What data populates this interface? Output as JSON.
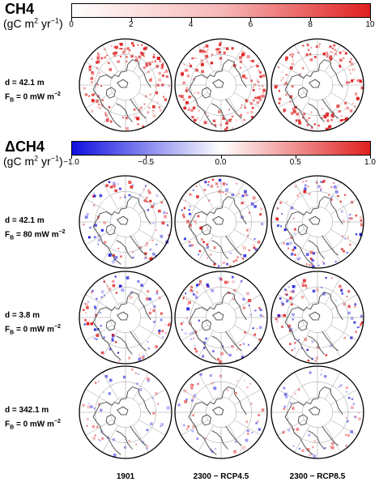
{
  "top": {
    "title": "CH4",
    "units": {
      "prefix": "(gC m",
      "sup1": "2",
      "mid": " yr",
      "sup2": "−1",
      "suffix": ")"
    },
    "colorbar": {
      "ticks": [
        "0",
        "2",
        "4",
        "6",
        "8",
        "10"
      ],
      "range": [
        0,
        10
      ],
      "colors": [
        "#ffffff",
        "#f7b8b8",
        "#e02020"
      ]
    }
  },
  "bottom": {
    "title": "ΔCH4",
    "units": {
      "prefix": "(gC m",
      "sup1": "2",
      "mid": " yr",
      "sup2": "−1",
      "suffix": ")"
    },
    "colorbar": {
      "ticks": [
        "−1.0",
        "−0.5",
        "0.0",
        "0.5",
        "1.0"
      ],
      "range": [
        -1,
        1
      ],
      "colors": [
        "#1010e0",
        "#ffffff",
        "#e02020"
      ]
    }
  },
  "rows": [
    {
      "d": "d = 42.1 m",
      "fb_value": " = 0 mW m",
      "fb_exp": "−2"
    },
    {
      "d": "d = 42.1 m",
      "fb_value": " = 80 mW m",
      "fb_exp": "−2"
    },
    {
      "d": "d = 3.8 m",
      "fb_value": " = 0 mW m",
      "fb_exp": "−2"
    },
    {
      "d": "d = 342.1 m",
      "fb_value": " = 0 mW m",
      "fb_exp": "−2"
    }
  ],
  "fb_symbol": "F",
  "fb_sub": "B",
  "columns": [
    "1901",
    "2300 − RCP4.5",
    "2300 − RCP8.5"
  ],
  "colors": {
    "positive": "#e02020",
    "negative": "#1a1ae0",
    "land": "#444444",
    "grid": "#999999"
  }
}
